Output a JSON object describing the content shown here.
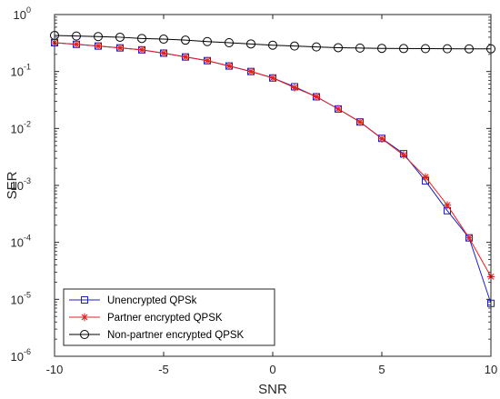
{
  "chart_data": {
    "type": "line",
    "title": "",
    "xlabel": "SNR",
    "ylabel": "SER",
    "xlim": [
      -10,
      10
    ],
    "ylim": [
      1e-06,
      1
    ],
    "yscale": "log",
    "grid": false,
    "legend_position": "bottom-left",
    "x_ticks": [
      -10,
      -5,
      0,
      5,
      10
    ],
    "x_tick_labels": [
      "-10",
      "-5",
      "0",
      "5",
      "10"
    ],
    "y_ticks": [
      {
        "value": 1e-06,
        "base": "10",
        "exp": "-6"
      },
      {
        "value": 1e-05,
        "base": "10",
        "exp": "-5"
      },
      {
        "value": 0.0001,
        "base": "10",
        "exp": "-4"
      },
      {
        "value": 0.001,
        "base": "10",
        "exp": "-3"
      },
      {
        "value": 0.01,
        "base": "10",
        "exp": "-2"
      },
      {
        "value": 0.1,
        "base": "10",
        "exp": "-1"
      },
      {
        "value": 1,
        "base": "10",
        "exp": "0"
      }
    ],
    "x": [
      -10,
      -9,
      -8,
      -7,
      -6,
      -5,
      -4,
      -3,
      -2,
      -1,
      0,
      1,
      2,
      3,
      4,
      5,
      6,
      7,
      8,
      9,
      10
    ],
    "series": [
      {
        "name": "Unencrypted QPSk",
        "color": "#1f1fb4",
        "marker": "square",
        "values": [
          0.32,
          0.3,
          0.28,
          0.26,
          0.24,
          0.21,
          0.18,
          0.155,
          0.125,
          0.1,
          0.077,
          0.054,
          0.036,
          0.022,
          0.013,
          0.0067,
          0.0036,
          0.0012,
          0.00036,
          0.00012,
          8.5e-06
        ]
      },
      {
        "name": "Partner encrypted QPSK",
        "color": "#e02020",
        "marker": "star",
        "values": [
          0.32,
          0.3,
          0.28,
          0.26,
          0.24,
          0.21,
          0.18,
          0.155,
          0.125,
          0.1,
          0.077,
          0.052,
          0.036,
          0.022,
          0.013,
          0.0066,
          0.0034,
          0.0014,
          0.00045,
          0.00012,
          2.5e-05
        ]
      },
      {
        "name": "Non-partner encrypted QPSK",
        "color": "#000000",
        "marker": "circle",
        "values": [
          0.43,
          0.42,
          0.41,
          0.4,
          0.38,
          0.37,
          0.355,
          0.335,
          0.32,
          0.305,
          0.29,
          0.28,
          0.27,
          0.262,
          0.258,
          0.255,
          0.253,
          0.252,
          0.251,
          0.25,
          0.25
        ]
      }
    ]
  }
}
